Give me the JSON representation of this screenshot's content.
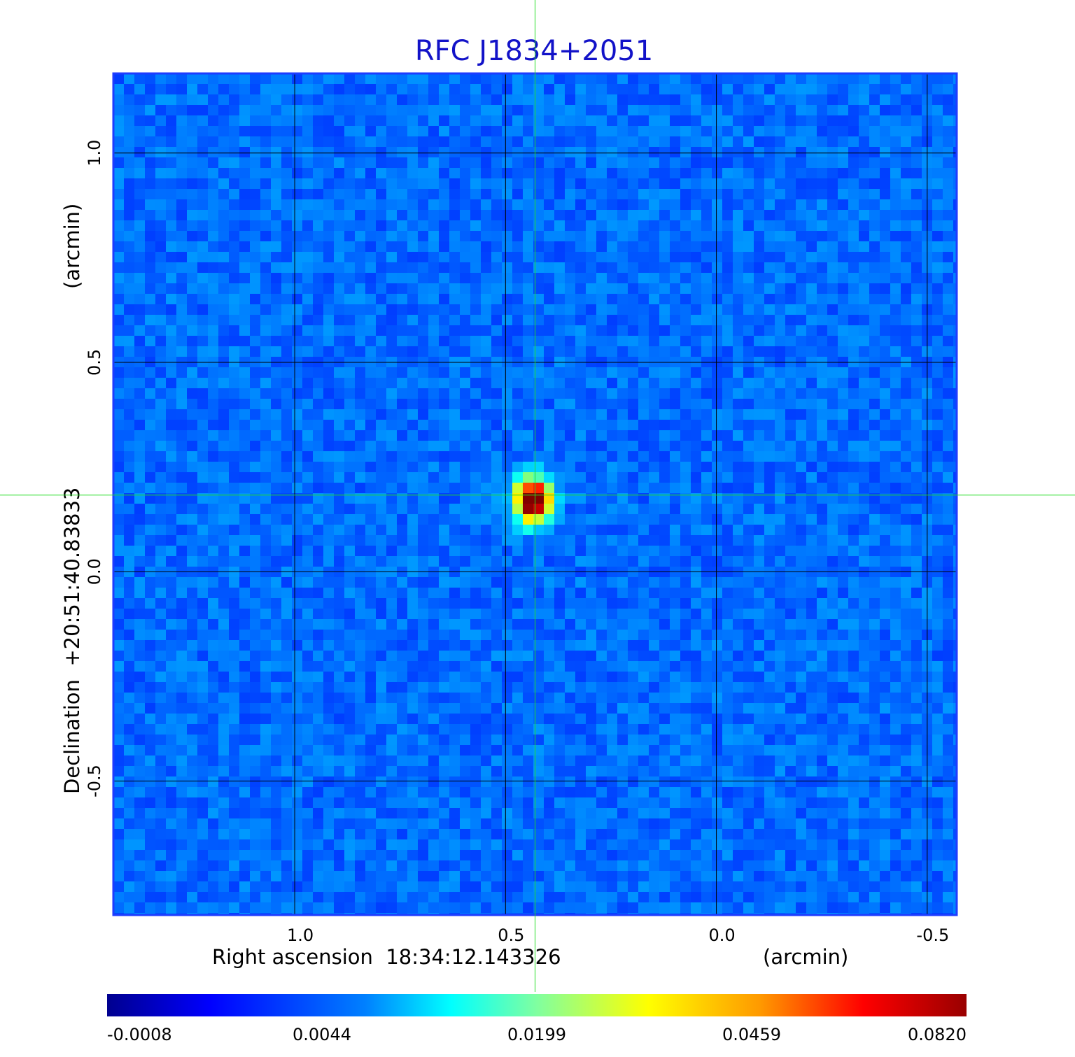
{
  "chart_data": {
    "type": "heatmap",
    "title": "RFC J1834+2051",
    "xlabel": "Right ascension  18:34:12.143326",
    "xunit": "(arcmin)",
    "ylabel": "Declination  +20:51:40.83833",
    "yunit": "(arcmin)",
    "x_ticks": [
      "1.0",
      "0.5",
      "0.0",
      "-0.5"
    ],
    "x_tick_values": [
      1.0,
      0.5,
      0.0,
      -0.5
    ],
    "y_ticks": [
      "1.0",
      "0.5",
      "0.0",
      "-0.5"
    ],
    "y_tick_values": [
      1.0,
      0.5,
      0.0,
      -0.5
    ],
    "xlim": [
      1.43,
      -0.57
    ],
    "ylim": [
      -0.82,
      1.19
    ],
    "grid": true,
    "crosshair": {
      "x": 0.43,
      "y": 0.183
    },
    "source": {
      "x": 0.435,
      "y": 0.17,
      "peak": 0.082
    },
    "background_level": 0.002,
    "colorbar": {
      "ticks": [
        "-0.0008",
        "0.0044",
        "0.0199",
        "0.0459",
        "0.0820"
      ],
      "tick_values": [
        -0.0008,
        0.0044,
        0.0199,
        0.0459,
        0.082
      ],
      "colormap": "jet",
      "position": "bottom"
    },
    "colors": {
      "title": "#1212c8",
      "grid": "#000000",
      "crosshair": "#22dd22"
    }
  }
}
